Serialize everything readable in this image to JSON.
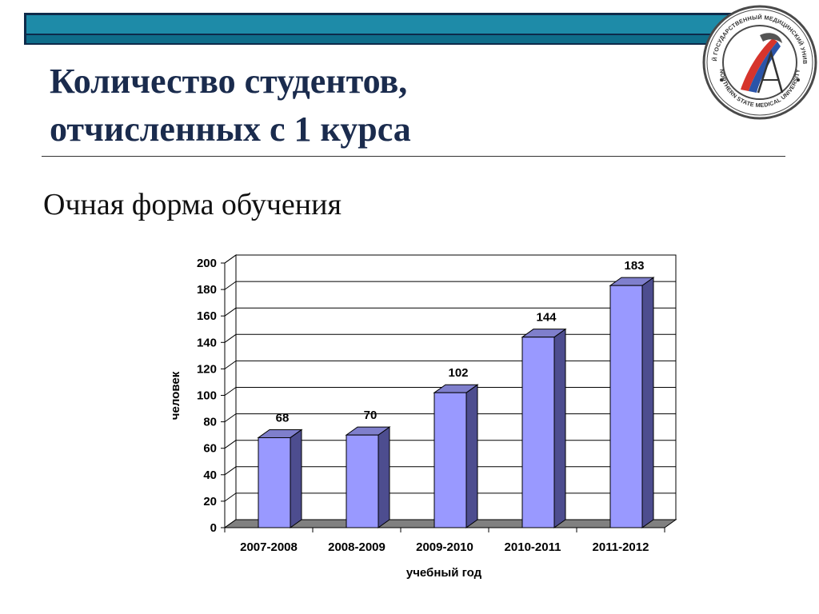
{
  "header": {
    "title_line1": "Количество студентов,",
    "title_line2": "отчисленных с 1 курса",
    "subtitle": "Очная форма обучения"
  },
  "logo": {
    "ring_text_top": "СЕВЕРНЫЙ ГОСУДАРСТВЕННЫЙ МЕДИЦИНСКИЙ УНИВЕРСИТЕТ",
    "ring_text_bottom": "NORTHERN STATE MEDICAL UNIVERSITY"
  },
  "colors": {
    "bar_front": "#9999ff",
    "bar_side": "#4d4d8f",
    "bar_top": "#7f7fcc",
    "floor": "#808080",
    "band": "#1e8ba8",
    "title": "#1a2b4d"
  },
  "chart_data": {
    "type": "bar",
    "categories": [
      "2007-2008",
      "2008-2009",
      "2009-2010",
      "2010-2011",
      "2011-2012"
    ],
    "values": [
      68,
      70,
      102,
      144,
      183
    ],
    "xlabel": "учебный год",
    "ylabel": "человек",
    "ylim": [
      0,
      200
    ],
    "yticks": [
      0,
      20,
      40,
      60,
      80,
      100,
      120,
      140,
      160,
      180,
      200
    ],
    "grid": true,
    "legend": "none"
  }
}
